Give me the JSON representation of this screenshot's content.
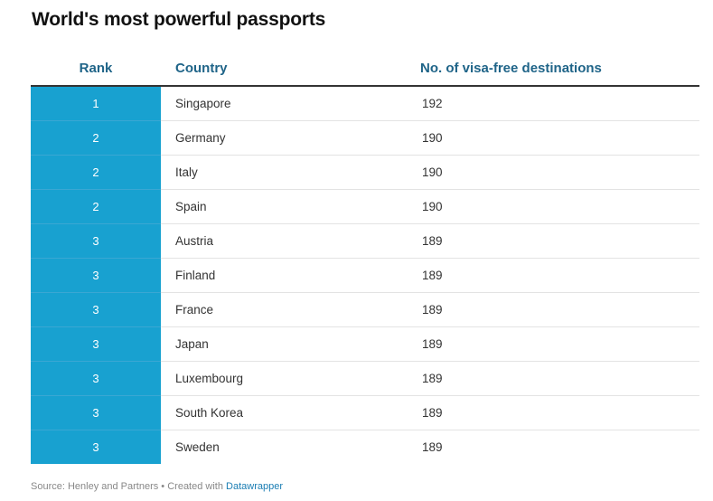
{
  "title": "World's most powerful passports",
  "accent_color": "#18a1d0",
  "chart_data": {
    "type": "table",
    "title": "World's most powerful passports",
    "columns": [
      "Rank",
      "Country",
      "No. of visa-free destinations"
    ],
    "rows": [
      {
        "rank": "1",
        "country": "Singapore",
        "visa_free": "192"
      },
      {
        "rank": "2",
        "country": "Germany",
        "visa_free": "190"
      },
      {
        "rank": "2",
        "country": "Italy",
        "visa_free": "190"
      },
      {
        "rank": "2",
        "country": "Spain",
        "visa_free": "190"
      },
      {
        "rank": "3",
        "country": "Austria",
        "visa_free": "189"
      },
      {
        "rank": "3",
        "country": "Finland",
        "visa_free": "189"
      },
      {
        "rank": "3",
        "country": "France",
        "visa_free": "189"
      },
      {
        "rank": "3",
        "country": "Japan",
        "visa_free": "189"
      },
      {
        "rank": "3",
        "country": "Luxembourg",
        "visa_free": "189"
      },
      {
        "rank": "3",
        "country": "South Korea",
        "visa_free": "189"
      },
      {
        "rank": "3",
        "country": "Sweden",
        "visa_free": "189"
      }
    ]
  },
  "footer": {
    "source": "Source: Henley and Partners",
    "separator": " • ",
    "created_with": "Created with ",
    "link": "Datawrapper"
  }
}
